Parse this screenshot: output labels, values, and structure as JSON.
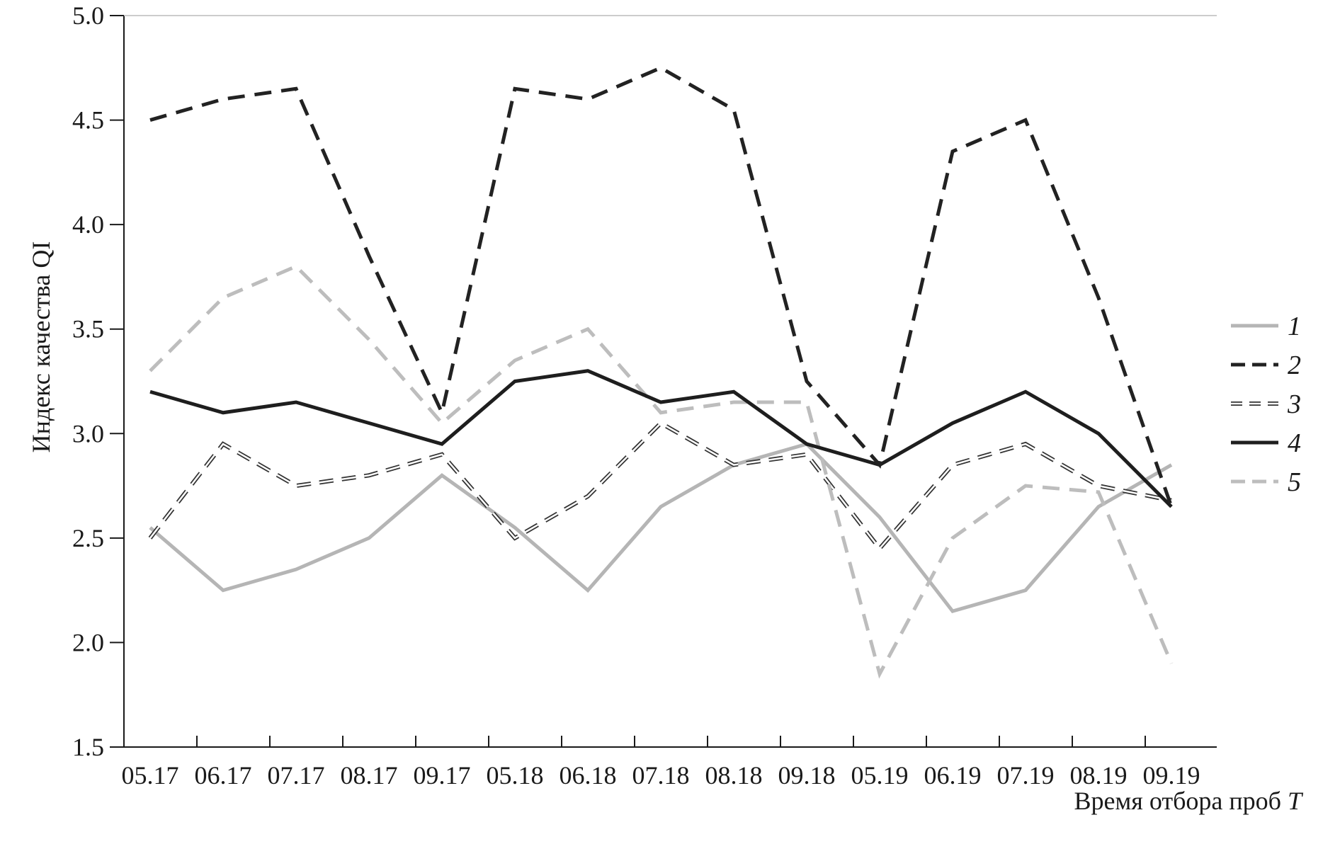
{
  "chart_data": {
    "type": "line",
    "title": "",
    "xlabel_prefix": "Время отбора проб ",
    "xlabel_var": "T",
    "ylabel": "Индекс качества QI",
    "ylim": [
      1.5,
      5.0
    ],
    "yticks": [
      "1.5",
      "2.0",
      "2.5",
      "3.0",
      "3.5",
      "4.0",
      "4.5",
      "5.0"
    ],
    "grid": false,
    "legend_position": "right",
    "categories": [
      "05.17",
      "06.17",
      "07.17",
      "08.17",
      "09.17",
      "05.18",
      "06.18",
      "07.18",
      "08.18",
      "09.18",
      "05.19",
      "06.19",
      "07.19",
      "08.19",
      "09.19"
    ],
    "series": [
      {
        "name": "1",
        "color": "#b5b5b5",
        "style": "solid",
        "values": [
          2.55,
          2.25,
          2.35,
          2.5,
          2.8,
          2.55,
          2.25,
          2.65,
          2.85,
          2.95,
          2.6,
          2.15,
          2.25,
          2.65,
          2.85
        ]
      },
      {
        "name": "2",
        "color": "#222222",
        "style": "dashed",
        "values": [
          4.5,
          4.6,
          4.65,
          3.85,
          3.1,
          4.65,
          4.6,
          4.75,
          4.55,
          3.25,
          2.85,
          4.35,
          4.5,
          3.65,
          2.65
        ]
      },
      {
        "name": "3",
        "color": "#333333",
        "style": "hollow-dashed",
        "values": [
          2.5,
          2.95,
          2.75,
          2.8,
          2.9,
          2.5,
          2.7,
          3.05,
          2.85,
          2.9,
          2.45,
          2.85,
          2.95,
          2.75,
          2.68
        ]
      },
      {
        "name": "4",
        "color": "#1e1e1e",
        "style": "solid-bold",
        "values": [
          3.2,
          3.1,
          3.15,
          3.05,
          2.95,
          3.25,
          3.3,
          3.15,
          3.2,
          2.95,
          2.85,
          3.05,
          3.2,
          3.0,
          2.65
        ]
      },
      {
        "name": "5",
        "color": "#bdbdbd",
        "style": "dashed",
        "values": [
          3.3,
          3.65,
          3.8,
          3.45,
          3.05,
          3.35,
          3.5,
          3.1,
          3.15,
          3.15,
          1.85,
          2.5,
          2.75,
          2.72,
          1.9
        ]
      }
    ]
  }
}
